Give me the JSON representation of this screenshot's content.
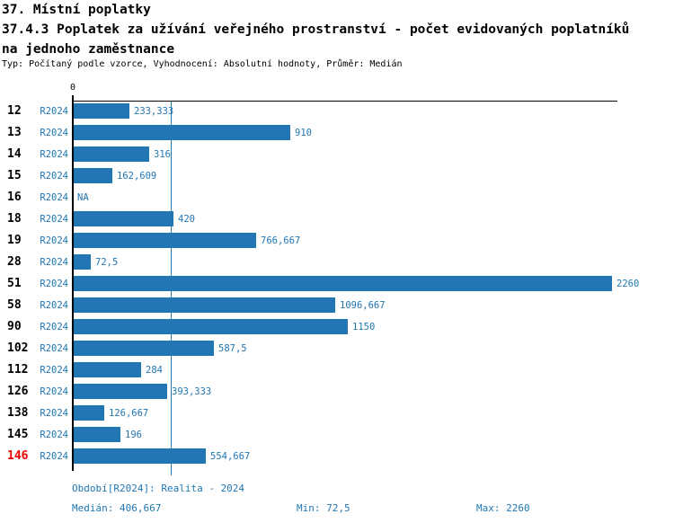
{
  "header": {
    "title": "37. Místní poplatky",
    "subtitle_line1": "37.4.3 Poplatek za užívání veřejného prostranství - počet evidovaných poplatníků",
    "subtitle_line2": "na jednoho zaměstnance",
    "meta": "Typ: Počítaný podle vzorce, Vyhodnocení: Absolutní hodnoty, Průměr: Medián"
  },
  "chart_data": {
    "type": "bar",
    "orientation": "horizontal",
    "title": "37.4.3 Poplatek za užívání veřejného prostranství - počet evidovaných poplatníků na jednoho zaměstnance",
    "xlabel": "",
    "ylabel": "",
    "axis": {
      "zero_label": "0",
      "x_min": 0,
      "x_max": 2260,
      "median_value": 406.667,
      "grid": false,
      "median_line_color": "#2077b4"
    },
    "series_label": "R2024",
    "rows": [
      {
        "id": "12",
        "period": "R2024",
        "value": 233.333,
        "label": "233,333",
        "highlight": false
      },
      {
        "id": "13",
        "period": "R2024",
        "value": 910,
        "label": "910",
        "highlight": false
      },
      {
        "id": "14",
        "period": "R2024",
        "value": 316,
        "label": "316",
        "highlight": false
      },
      {
        "id": "15",
        "period": "R2024",
        "value": 162.609,
        "label": "162,609",
        "highlight": false
      },
      {
        "id": "16",
        "period": "R2024",
        "value": null,
        "label": "NA",
        "highlight": false
      },
      {
        "id": "18",
        "period": "R2024",
        "value": 420,
        "label": "420",
        "highlight": false
      },
      {
        "id": "19",
        "period": "R2024",
        "value": 766.667,
        "label": "766,667",
        "highlight": false
      },
      {
        "id": "28",
        "period": "R2024",
        "value": 72.5,
        "label": "72,5",
        "highlight": false
      },
      {
        "id": "51",
        "period": "R2024",
        "value": 2260,
        "label": "2260",
        "highlight": false
      },
      {
        "id": "58",
        "period": "R2024",
        "value": 1096.667,
        "label": "1096,667",
        "highlight": false
      },
      {
        "id": "90",
        "period": "R2024",
        "value": 1150,
        "label": "1150",
        "highlight": false
      },
      {
        "id": "102",
        "period": "R2024",
        "value": 587.5,
        "label": "587,5",
        "highlight": false
      },
      {
        "id": "112",
        "period": "R2024",
        "value": 284,
        "label": "284",
        "highlight": false
      },
      {
        "id": "126",
        "period": "R2024",
        "value": 393.333,
        "label": "393,333",
        "highlight": false
      },
      {
        "id": "138",
        "period": "R2024",
        "value": 126.667,
        "label": "126,667",
        "highlight": false
      },
      {
        "id": "145",
        "period": "R2024",
        "value": 196,
        "label": "196",
        "highlight": false
      },
      {
        "id": "146",
        "period": "R2024",
        "value": 554.667,
        "label": "554,667",
        "highlight": true
      }
    ],
    "colors": {
      "bar": "#2077b4",
      "blue_text": "#2077b4",
      "highlight_red": "#ee0000",
      "axis_black": "#000000"
    }
  },
  "footer": {
    "period": "Období[R2024]: Realita - 2024",
    "median": "Medián: 406,667",
    "min": "Min: 72,5",
    "max": "Max: 2260"
  }
}
